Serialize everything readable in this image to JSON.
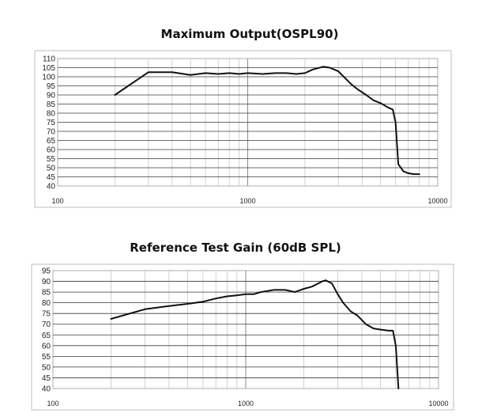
{
  "chart_data": [
    {
      "type": "line",
      "title": "Maximum Output(OSPL90)",
      "xscale": "log",
      "xlim": [
        100,
        10000
      ],
      "ylim": [
        40,
        110
      ],
      "xticks": [
        "100",
        "1000",
        "10000"
      ],
      "yticks": [
        "110",
        "105",
        "100",
        "95",
        "90",
        "85",
        "80",
        "75",
        "70",
        "65",
        "60",
        "55",
        "50",
        "45",
        "40"
      ],
      "xlabel": "",
      "ylabel": "",
      "grid": true,
      "series": [
        {
          "name": "OSPL90",
          "x": [
            200,
            300,
            400,
            500,
            600,
            700,
            800,
            900,
            1000,
            1200,
            1400,
            1600,
            1800,
            2000,
            2200,
            2500,
            2700,
            3000,
            3200,
            3500,
            3800,
            4200,
            4600,
            5000,
            5500,
            5800,
            6000,
            6200,
            6600,
            7000,
            7500,
            8000
          ],
          "y": [
            90,
            102.5,
            102.5,
            101,
            102,
            101.5,
            102,
            101.5,
            102,
            101.5,
            102,
            102,
            101.5,
            102,
            104,
            105.5,
            105,
            103,
            100,
            96,
            93,
            90,
            87,
            85.5,
            83,
            82,
            75,
            52,
            48,
            47,
            46.5,
            46.5
          ]
        }
      ]
    },
    {
      "type": "line",
      "title": "Reference Test Gain (60dB SPL)",
      "xscale": "log",
      "xlim": [
        100,
        10000
      ],
      "ylim": [
        40,
        95
      ],
      "xticks": [
        "100",
        "1000",
        "10000"
      ],
      "yticks": [
        "95",
        "90",
        "85",
        "80",
        "75",
        "70",
        "65",
        "60",
        "55",
        "50",
        "45",
        "40"
      ],
      "xlabel": "",
      "ylabel": "",
      "grid": true,
      "series": [
        {
          "name": "Gain",
          "x": [
            200,
            300,
            400,
            500,
            600,
            700,
            800,
            900,
            1000,
            1100,
            1200,
            1400,
            1600,
            1800,
            2000,
            2200,
            2500,
            2600,
            2800,
            3000,
            3200,
            3500,
            3800,
            4200,
            4600,
            5000,
            5500,
            5800,
            6000,
            6200
          ],
          "y": [
            72.5,
            77,
            78.5,
            79.5,
            80.5,
            82,
            83,
            83.5,
            84,
            84,
            85,
            86,
            86,
            85,
            86.5,
            87.5,
            90,
            90.5,
            89,
            84,
            80,
            76,
            74,
            70,
            68,
            67.5,
            67,
            67,
            60,
            40
          ]
        }
      ]
    }
  ]
}
